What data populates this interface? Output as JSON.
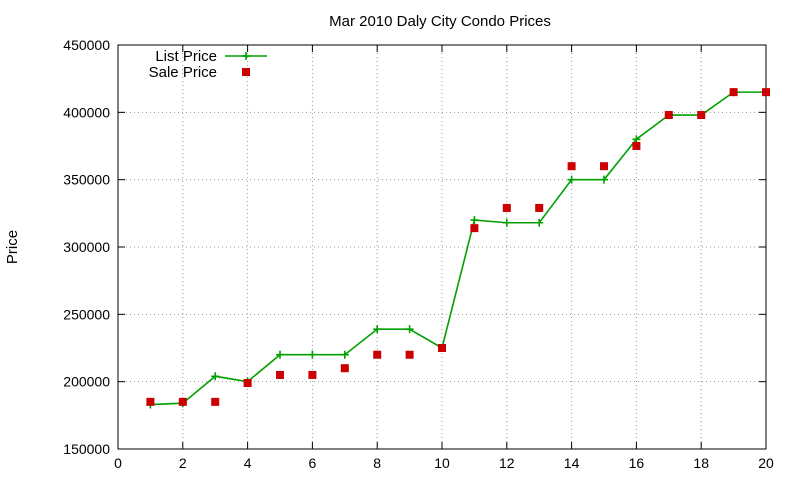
{
  "chart_data": {
    "type": "line",
    "title": "Mar 2010 Daly City Condo Prices",
    "xlabel": "",
    "ylabel": "Price",
    "xlim": [
      0,
      20
    ],
    "ylim": [
      150000,
      450000
    ],
    "xticks": [
      0,
      2,
      4,
      6,
      8,
      10,
      12,
      14,
      16,
      18,
      20
    ],
    "yticks": [
      150000,
      200000,
      250000,
      300000,
      350000,
      400000,
      450000
    ],
    "grid": true,
    "legend_position": "top-left",
    "series": [
      {
        "name": "List Price",
        "style": "line+cross",
        "color": "#00a000",
        "x": [
          1,
          2,
          3,
          4,
          5,
          6,
          7,
          8,
          9,
          10,
          11,
          12,
          13,
          14,
          15,
          16,
          17,
          18,
          19,
          20
        ],
        "values": [
          183000,
          184000,
          204000,
          200000,
          220000,
          220000,
          220000,
          239000,
          239000,
          225000,
          320000,
          318000,
          318000,
          350000,
          350000,
          380000,
          398000,
          398000,
          415000,
          415000
        ]
      },
      {
        "name": "Sale Price",
        "style": "square",
        "color": "#cc0000",
        "x": [
          1,
          2,
          3,
          4,
          5,
          6,
          7,
          8,
          9,
          10,
          11,
          12,
          13,
          14,
          15,
          16,
          17,
          18,
          19,
          20
        ],
        "values": [
          185000,
          185000,
          185000,
          199000,
          205000,
          205000,
          210000,
          220000,
          220000,
          225000,
          314000,
          329000,
          329000,
          360000,
          360000,
          375000,
          398000,
          398000,
          415000,
          415000
        ]
      }
    ]
  }
}
